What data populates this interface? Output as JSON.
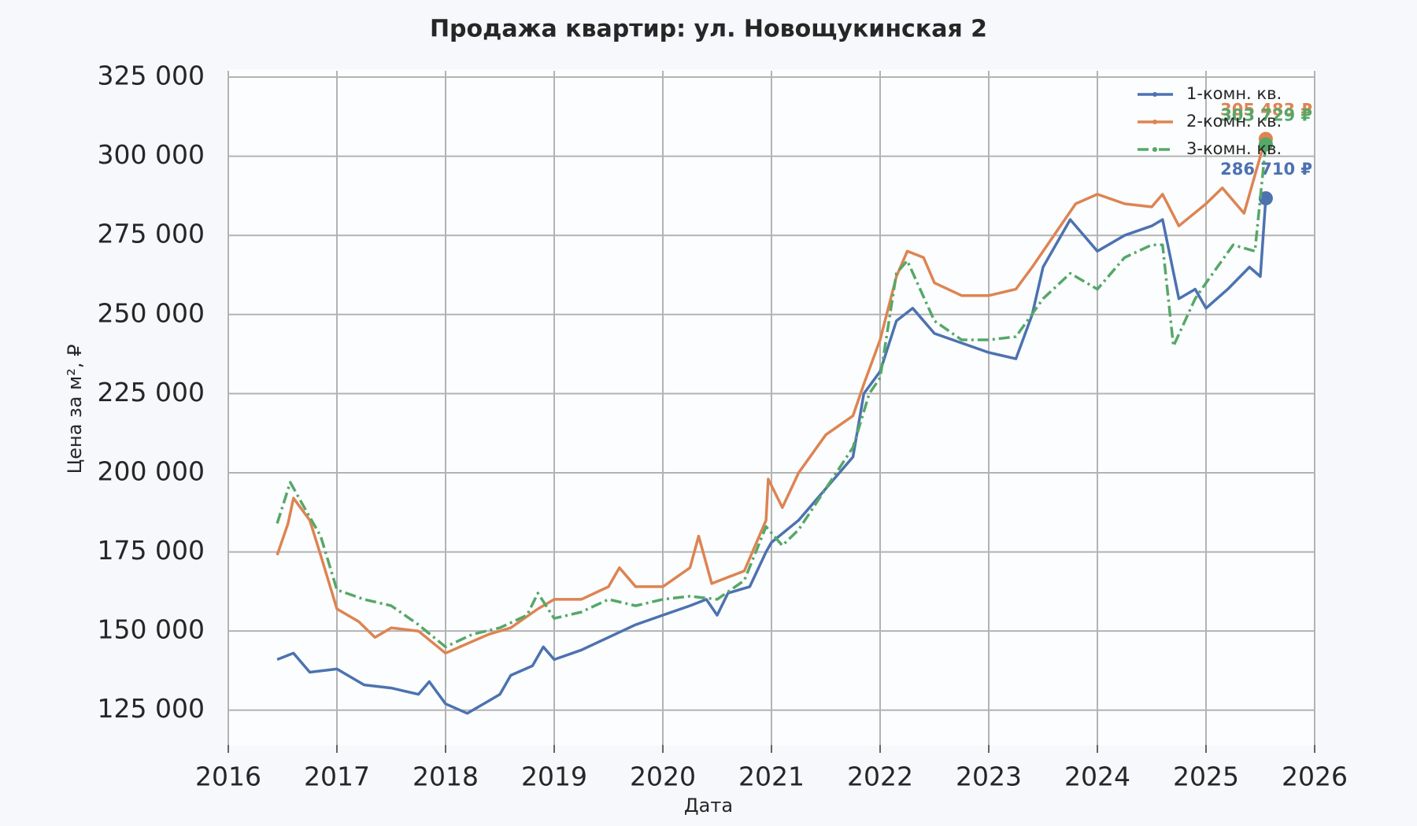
{
  "chart_data": {
    "type": "line",
    "title": "Продажа квартир: ул. Новощукинская 2",
    "x_label": "Дата",
    "y_label": "Цена за м², ₽",
    "xlim": [
      2016,
      2026
    ],
    "xticks": [
      2016,
      2017,
      2018,
      2019,
      2020,
      2021,
      2022,
      2023,
      2024,
      2025,
      2026
    ],
    "ylim": [
      114000,
      327000
    ],
    "yticks": [
      {
        "value": 125000,
        "label": "125 000"
      },
      {
        "value": 150000,
        "label": "150 000"
      },
      {
        "value": 175000,
        "label": "175 000"
      },
      {
        "value": 200000,
        "label": "200 000"
      },
      {
        "value": 225000,
        "label": "225 000"
      },
      {
        "value": 250000,
        "label": "250 000"
      },
      {
        "value": 275000,
        "label": "275 000"
      },
      {
        "value": 300000,
        "label": "300 000"
      },
      {
        "value": 325000,
        "label": "325 000"
      }
    ],
    "grid": true,
    "legend": "upper right",
    "series": [
      {
        "name": "1-комн. кв.",
        "color": "#4c72b0",
        "dash": "solid",
        "end_label": "286 710 ₽",
        "x": [
          2016.45,
          2016.6,
          2016.75,
          2017.0,
          2017.25,
          2017.5,
          2017.75,
          2017.85,
          2018.0,
          2018.2,
          2018.4,
          2018.5,
          2018.6,
          2018.8,
          2018.9,
          2019.0,
          2019.25,
          2019.5,
          2019.75,
          2020.0,
          2020.25,
          2020.4,
          2020.5,
          2020.6,
          2020.8,
          2020.95,
          2021.0,
          2021.25,
          2021.5,
          2021.75,
          2021.85,
          2022.0,
          2022.15,
          2022.3,
          2022.5,
          2022.75,
          2023.0,
          2023.25,
          2023.4,
          2023.5,
          2023.75,
          2024.0,
          2024.25,
          2024.5,
          2024.6,
          2024.75,
          2024.9,
          2025.0,
          2025.2,
          2025.4,
          2025.5,
          2025.55
        ],
        "values": [
          141000,
          143000,
          137000,
          138000,
          133000,
          132000,
          130000,
          134000,
          127000,
          124000,
          128000,
          130000,
          136000,
          139000,
          145000,
          141000,
          144000,
          148000,
          152000,
          155000,
          158000,
          160000,
          155000,
          162000,
          164000,
          175000,
          178000,
          185000,
          195000,
          205000,
          225000,
          232000,
          248000,
          252000,
          244000,
          241000,
          238000,
          236000,
          250000,
          265000,
          280000,
          270000,
          275000,
          278000,
          280000,
          255000,
          258000,
          252000,
          258000,
          265000,
          262000,
          286710
        ]
      },
      {
        "name": "2-комн. кв.",
        "color": "#dd8452",
        "dash": "solid",
        "end_label": "305 483 ₽",
        "x": [
          2016.45,
          2016.55,
          2016.6,
          2016.75,
          2016.85,
          2017.0,
          2017.2,
          2017.35,
          2017.5,
          2017.75,
          2018.0,
          2018.2,
          2018.4,
          2018.6,
          2018.85,
          2019.0,
          2019.25,
          2019.5,
          2019.6,
          2019.75,
          2020.0,
          2020.25,
          2020.33,
          2020.45,
          2020.75,
          2020.95,
          2020.97,
          2021.1,
          2021.25,
          2021.5,
          2021.75,
          2021.85,
          2022.0,
          2022.15,
          2022.25,
          2022.4,
          2022.5,
          2022.75,
          2023.0,
          2023.25,
          2023.4,
          2023.6,
          2023.8,
          2024.0,
          2024.25,
          2024.5,
          2024.6,
          2024.75,
          2025.0,
          2025.15,
          2025.35,
          2025.5,
          2025.55
        ],
        "values": [
          174000,
          184000,
          192000,
          185000,
          174000,
          157000,
          153000,
          148000,
          151000,
          150000,
          143000,
          146000,
          149000,
          151000,
          157000,
          160000,
          160000,
          164000,
          170000,
          164000,
          164000,
          170000,
          180000,
          165000,
          169000,
          185000,
          198000,
          189000,
          200000,
          212000,
          218000,
          228000,
          242000,
          262000,
          270000,
          268000,
          260000,
          256000,
          256000,
          258000,
          265000,
          275000,
          285000,
          288000,
          285000,
          284000,
          288000,
          278000,
          285000,
          290000,
          282000,
          300000,
          305483
        ]
      },
      {
        "name": "3-комн. кв.",
        "color": "#55a868",
        "dash": "dashdot",
        "end_label": "303 729 ₽",
        "x": [
          2016.45,
          2016.57,
          2016.7,
          2016.85,
          2017.0,
          2017.25,
          2017.5,
          2017.75,
          2018.0,
          2018.25,
          2018.5,
          2018.75,
          2018.85,
          2019.0,
          2019.25,
          2019.5,
          2019.75,
          2020.0,
          2020.25,
          2020.5,
          2020.75,
          2020.95,
          2021.1,
          2021.25,
          2021.5,
          2021.75,
          2021.9,
          2022.0,
          2022.15,
          2022.25,
          2022.5,
          2022.75,
          2023.0,
          2023.25,
          2023.5,
          2023.75,
          2024.0,
          2024.25,
          2024.5,
          2024.6,
          2024.7,
          2024.9,
          2025.0,
          2025.25,
          2025.45,
          2025.55
        ],
        "values": [
          184000,
          197000,
          189000,
          180000,
          163000,
          160000,
          158000,
          152000,
          145000,
          149000,
          151000,
          155000,
          162000,
          154000,
          156000,
          160000,
          158000,
          160000,
          161000,
          160000,
          166000,
          183000,
          177000,
          182000,
          195000,
          208000,
          225000,
          230000,
          263000,
          267000,
          248000,
          242000,
          242000,
          243000,
          255000,
          263000,
          258000,
          268000,
          272000,
          272000,
          240000,
          255000,
          260000,
          272000,
          270000,
          303729
        ]
      }
    ]
  }
}
